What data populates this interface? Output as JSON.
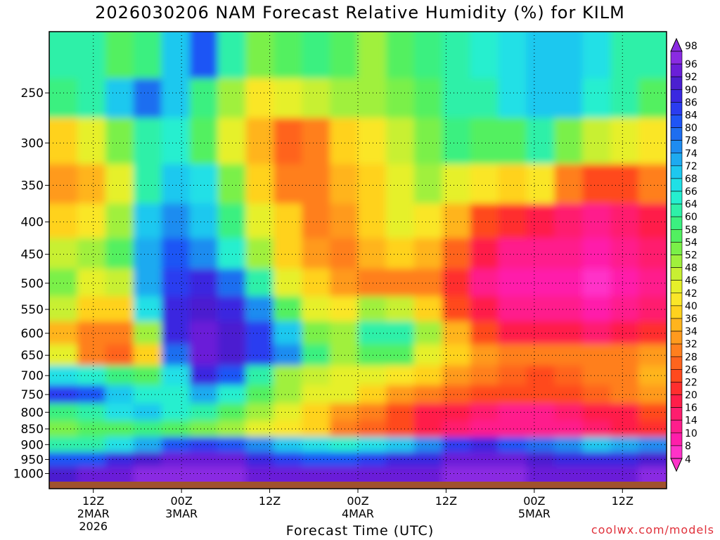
{
  "chart_data": {
    "type": "heatmap",
    "title": "2026030206 NAM Forecast Relative Humidity (%) for KILM",
    "xlabel": "Forecast Time (UTC)",
    "ylabel": "",
    "y_scale": "log",
    "y_reversed": true,
    "y_ticks": [
      250,
      300,
      350,
      400,
      450,
      500,
      550,
      600,
      650,
      700,
      750,
      800,
      850,
      900,
      950,
      1000
    ],
    "ylim": [
      200,
      1030
    ],
    "x_ticks": [
      {
        "hour": 6,
        "line1": "12Z",
        "line2": "2MAR",
        "line3": "2026"
      },
      {
        "hour": 18,
        "line1": "00Z",
        "line2": "3MAR",
        "line3": ""
      },
      {
        "hour": 30,
        "line1": "12Z",
        "line2": "",
        "line3": ""
      },
      {
        "hour": 42,
        "line1": "00Z",
        "line2": "4MAR",
        "line3": ""
      },
      {
        "hour": 54,
        "line1": "12Z",
        "line2": "",
        "line3": ""
      },
      {
        "hour": 66,
        "line1": "00Z",
        "line2": "5MAR",
        "line3": ""
      },
      {
        "hour": 78,
        "line1": "12Z",
        "line2": "",
        "line3": ""
      }
    ],
    "xlim": [
      0,
      84
    ],
    "grid": true,
    "colorbar": {
      "levels": [
        98,
        96,
        92,
        90,
        86,
        84,
        80,
        78,
        74,
        72,
        68,
        66,
        64,
        60,
        58,
        54,
        52,
        48,
        46,
        42,
        40,
        36,
        34,
        32,
        28,
        26,
        22,
        20,
        16,
        14,
        10,
        8,
        4
      ],
      "colors": [
        "#8a2be2",
        "#6a1fd8",
        "#4b1fd0",
        "#3a28e0",
        "#2a3cf0",
        "#1f55f5",
        "#1e6ef0",
        "#1e8cf0",
        "#1eaaf0",
        "#1ec8ef",
        "#20e0e6",
        "#25efcf",
        "#2ef0a8",
        "#3bf080",
        "#52f060",
        "#7af048",
        "#a0f03c",
        "#c8f032",
        "#e6f02a",
        "#fae628",
        "#ffd21e",
        "#ffb41e",
        "#ff9a1e",
        "#ff7f1e",
        "#ff641e",
        "#ff4a1e",
        "#ff2e2e",
        "#ff1e4a",
        "#ff1e6e",
        "#ff1e8c",
        "#ff1eaa",
        "#ff32c8"
      ]
    },
    "humidity_grid_description": "Relative humidity (%) vs forecast hour (0-84) and pressure level (hPa)",
    "rows": [
      {
        "p": 225,
        "values": [
          62,
          60,
          55,
          58,
          70,
          80,
          62,
          52,
          56,
          58,
          54,
          50,
          55,
          58,
          62,
          64,
          66,
          68,
          70,
          66,
          62,
          60
        ]
      },
      {
        "p": 250,
        "values": [
          58,
          62,
          70,
          78,
          70,
          58,
          48,
          40,
          42,
          46,
          50,
          48,
          52,
          56,
          60,
          62,
          66,
          70,
          68,
          64,
          60,
          56
        ]
      },
      {
        "p": 300,
        "values": [
          38,
          42,
          52,
          62,
          64,
          56,
          44,
          34,
          26,
          30,
          36,
          40,
          46,
          52,
          58,
          54,
          56,
          62,
          52,
          46,
          44,
          40
        ]
      },
      {
        "p": 350,
        "values": [
          32,
          34,
          44,
          62,
          70,
          66,
          52,
          38,
          30,
          28,
          34,
          38,
          44,
          50,
          44,
          40,
          36,
          40,
          30,
          24,
          22,
          28
        ]
      },
      {
        "p": 400,
        "values": [
          36,
          40,
          48,
          68,
          76,
          70,
          58,
          44,
          36,
          30,
          32,
          36,
          42,
          40,
          34,
          24,
          20,
          16,
          14,
          12,
          14,
          18
        ]
      },
      {
        "p": 450,
        "values": [
          46,
          48,
          56,
          72,
          80,
          76,
          64,
          48,
          38,
          32,
          30,
          34,
          36,
          34,
          26,
          16,
          10,
          10,
          10,
          8,
          10,
          14
        ]
      },
      {
        "p": 500,
        "values": [
          52,
          42,
          46,
          72,
          84,
          86,
          78,
          60,
          44,
          36,
          32,
          30,
          30,
          28,
          20,
          12,
          8,
          8,
          8,
          6,
          8,
          12
        ]
      },
      {
        "p": 550,
        "values": [
          46,
          38,
          36,
          66,
          88,
          90,
          86,
          76,
          56,
          42,
          40,
          48,
          46,
          36,
          24,
          16,
          12,
          10,
          10,
          8,
          10,
          14
        ]
      },
      {
        "p": 600,
        "values": [
          34,
          30,
          28,
          48,
          86,
          92,
          90,
          84,
          68,
          52,
          48,
          60,
          62,
          48,
          34,
          24,
          18,
          16,
          16,
          14,
          16,
          20
        ]
      },
      {
        "p": 650,
        "values": [
          42,
          30,
          26,
          36,
          78,
          94,
          90,
          84,
          74,
          58,
          50,
          56,
          54,
          44,
          36,
          32,
          30,
          28,
          30,
          28,
          30,
          32
        ]
      },
      {
        "p": 700,
        "values": [
          66,
          64,
          58,
          54,
          66,
          88,
          80,
          62,
          50,
          46,
          44,
          42,
          40,
          36,
          32,
          28,
          26,
          24,
          26,
          28,
          30,
          34
        ]
      },
      {
        "p": 750,
        "values": [
          84,
          82,
          70,
          64,
          64,
          72,
          64,
          54,
          48,
          44,
          42,
          38,
          32,
          28,
          26,
          24,
          22,
          22,
          24,
          26,
          28,
          32
        ]
      },
      {
        "p": 800,
        "values": [
          58,
          62,
          66,
          68,
          64,
          60,
          56,
          50,
          44,
          38,
          32,
          28,
          22,
          18,
          16,
          14,
          12,
          12,
          14,
          16,
          18,
          22
        ]
      },
      {
        "p": 850,
        "values": [
          52,
          54,
          56,
          58,
          56,
          52,
          48,
          44,
          40,
          36,
          30,
          26,
          22,
          18,
          14,
          12,
          10,
          10,
          12,
          14,
          16,
          20
        ]
      },
      {
        "p": 900,
        "values": [
          60,
          62,
          66,
          72,
          80,
          84,
          82,
          76,
          70,
          66,
          64,
          66,
          70,
          74,
          84,
          86,
          82,
          78,
          74,
          70,
          72,
          76
        ]
      },
      {
        "p": 950,
        "values": [
          80,
          82,
          86,
          90,
          92,
          94,
          92,
          88,
          84,
          82,
          82,
          84,
          86,
          88,
          92,
          94,
          92,
          90,
          88,
          86,
          88,
          90
        ]
      },
      {
        "p": 1000,
        "values": [
          90,
          92,
          94,
          96,
          96,
          96,
          96,
          94,
          92,
          92,
          92,
          94,
          94,
          94,
          96,
          96,
          96,
          94,
          94,
          92,
          94,
          96
        ]
      }
    ]
  },
  "credit": "coolwx.com/models"
}
